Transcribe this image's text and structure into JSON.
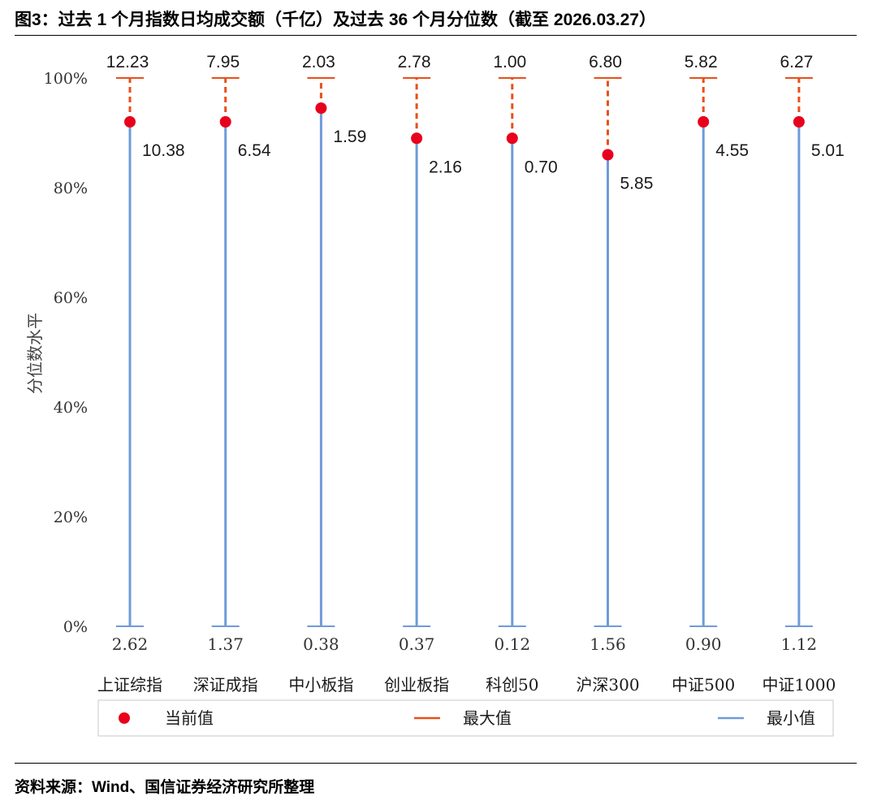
{
  "header": {
    "title": "图3：过去 1 个月指数日均成交额（千亿）及过去 36 个月分位数（截至 2026.03.27）"
  },
  "footer": {
    "source": "资料来源：Wind、国信证券经济研究所整理"
  },
  "chart_data": {
    "type": "range-dot",
    "ylabel": "分位数水平",
    "ylim": [
      0,
      100
    ],
    "yticks": [
      "0%",
      "20%",
      "40%",
      "60%",
      "80%",
      "100%"
    ],
    "grid": false,
    "legend_position": "bottom",
    "legend": [
      "当前值",
      "最大值",
      "最小值"
    ],
    "colors": {
      "current": "#e8001c",
      "max": "#e8501a",
      "min": "#6f9bd8"
    },
    "categories": [
      "上证综指",
      "深证成指",
      "中小板指",
      "创业板指",
      "科创50",
      "沪深300",
      "中证500",
      "中证1000"
    ],
    "series": [
      {
        "name": "当前值",
        "percentile": [
          92,
          92,
          94.5,
          89,
          89,
          86,
          92,
          92
        ],
        "labels": [
          "10.38",
          "6.54",
          "1.59",
          "2.16",
          "0.70",
          "5.85",
          "4.55",
          "5.01"
        ]
      },
      {
        "name": "最大值",
        "percentile": [
          100,
          100,
          100,
          100,
          100,
          100,
          100,
          100
        ],
        "labels": [
          "12.23",
          "7.95",
          "2.03",
          "2.78",
          "1.00",
          "6.80",
          "5.82",
          "6.27"
        ]
      },
      {
        "name": "最小值",
        "percentile": [
          0,
          0,
          0,
          0,
          0,
          0,
          0,
          0
        ],
        "labels": [
          "2.62",
          "1.37",
          "0.38",
          "0.37",
          "0.12",
          "1.56",
          "0.90",
          "1.12"
        ]
      }
    ]
  }
}
